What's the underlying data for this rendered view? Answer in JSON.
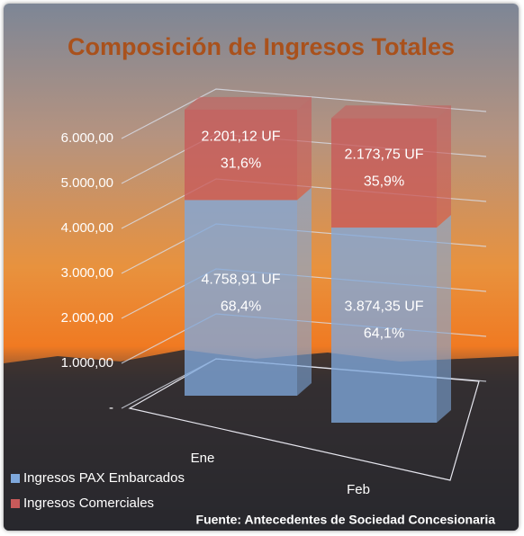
{
  "chart_data": {
    "type": "bar3d",
    "title": "Composición de Ingresos Totales",
    "source": "Fuente: Antecedentes de Sociedad Concesionaria",
    "categories": [
      "Ene",
      "Feb"
    ],
    "series": [
      {
        "name": "Ingresos PAX Embarcados",
        "color": "#7fa8dc",
        "values": [
          4758.91,
          3874.35
        ],
        "value_labels": [
          "4.758,91 UF",
          "3.874,35 UF"
        ],
        "percent_labels": [
          "68,4%",
          "64,1%"
        ]
      },
      {
        "name": "Ingresos Comerciales",
        "color": "#c85a5a",
        "values": [
          2201.12,
          2173.75
        ],
        "value_labels": [
          "2.201,12 UF",
          "2.173,75 UF"
        ],
        "percent_labels": [
          "31,6%",
          "35,9%"
        ]
      }
    ],
    "stacked": true,
    "ylim": [
      0,
      7000
    ],
    "yticks": [
      {
        "value": 0,
        "label": "-"
      },
      {
        "value": 1000,
        "label": "1.000,00"
      },
      {
        "value": 2000,
        "label": "2.000,00"
      },
      {
        "value": 3000,
        "label": "3.000,00"
      },
      {
        "value": 4000,
        "label": "4.000,00"
      },
      {
        "value": 5000,
        "label": "5.000,00"
      },
      {
        "value": 6000,
        "label": "6.000,00"
      }
    ],
    "grid": true,
    "legend": "bottom-left"
  }
}
